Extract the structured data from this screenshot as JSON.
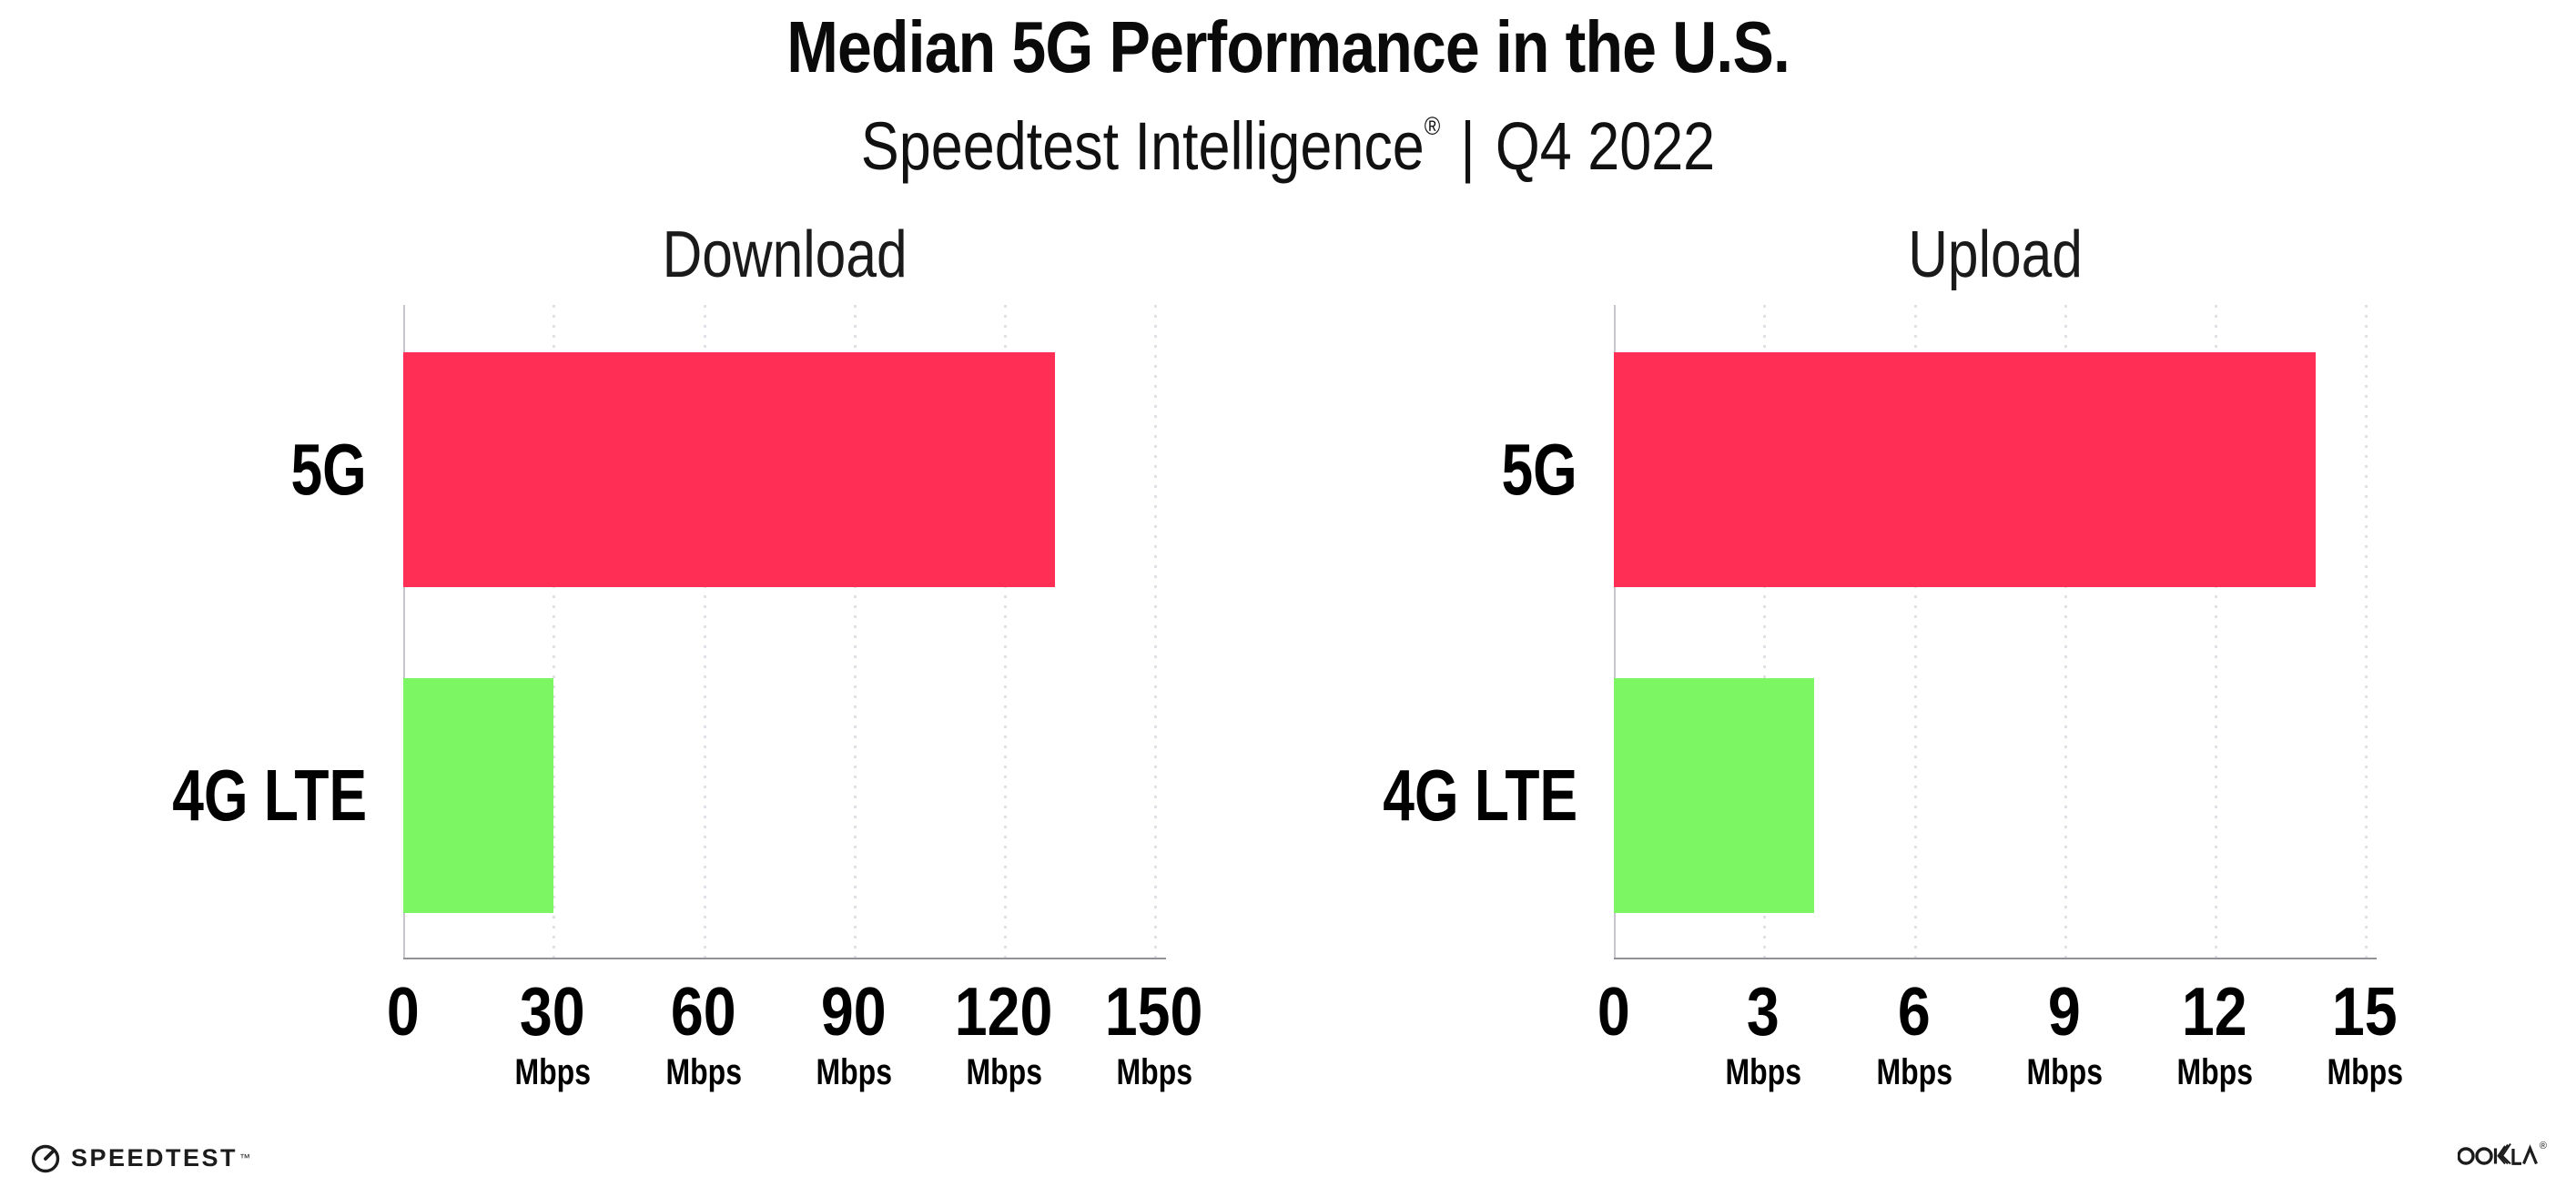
{
  "header": {
    "title": "Median 5G Performance in the U.S.",
    "subtitle_product": "Speedtest Intelligence",
    "subtitle_reg_mark": "®",
    "subtitle_separator": "|",
    "subtitle_period": "Q4 2022"
  },
  "chart_data": [
    {
      "type": "bar",
      "orientation": "horizontal",
      "title": "Download",
      "categories": [
        "5G",
        "4G LTE"
      ],
      "values": [
        130,
        30
      ],
      "unit": "Mbps",
      "xlim": [
        0,
        150
      ],
      "tick_step": 30,
      "grid": "dotted-vertical",
      "bars": [
        {
          "category": "5G",
          "value": 130,
          "color": "#FF2E55"
        },
        {
          "category": "4G LTE",
          "value": 30,
          "color": "#7CF662"
        }
      ],
      "ticks": [
        {
          "label": "0",
          "unit": ""
        },
        {
          "label": "30",
          "unit": "Mbps"
        },
        {
          "label": "60",
          "unit": "Mbps"
        },
        {
          "label": "90",
          "unit": "Mbps"
        },
        {
          "label": "120",
          "unit": "Mbps"
        },
        {
          "label": "150",
          "unit": "Mbps"
        }
      ]
    },
    {
      "type": "bar",
      "orientation": "horizontal",
      "title": "Upload",
      "categories": [
        "5G",
        "4G LTE"
      ],
      "values": [
        14,
        4
      ],
      "unit": "Mbps",
      "xlim": [
        0,
        15
      ],
      "tick_step": 3,
      "grid": "dotted-vertical",
      "bars": [
        {
          "category": "5G",
          "value": 14,
          "color": "#FF2E55"
        },
        {
          "category": "4G LTE",
          "value": 4,
          "color": "#7CF662"
        }
      ],
      "ticks": [
        {
          "label": "0",
          "unit": ""
        },
        {
          "label": "3",
          "unit": "Mbps"
        },
        {
          "label": "6",
          "unit": "Mbps"
        },
        {
          "label": "9",
          "unit": "Mbps"
        },
        {
          "label": "12",
          "unit": "Mbps"
        },
        {
          "label": "15",
          "unit": "Mbps"
        }
      ]
    }
  ],
  "footer": {
    "speedtest_label": "SPEEDTEST",
    "speedtest_tm": "™",
    "ookla_label": "OOKLA",
    "ookla_reg": "®"
  },
  "colors": {
    "bar_5g": "#FF2E55",
    "bar_4g_lte": "#7CF662",
    "gridline": "#e0e0e7",
    "axis_y": "#c6c6cb",
    "axis_x": "#919196",
    "text": "#0a0a0a"
  }
}
